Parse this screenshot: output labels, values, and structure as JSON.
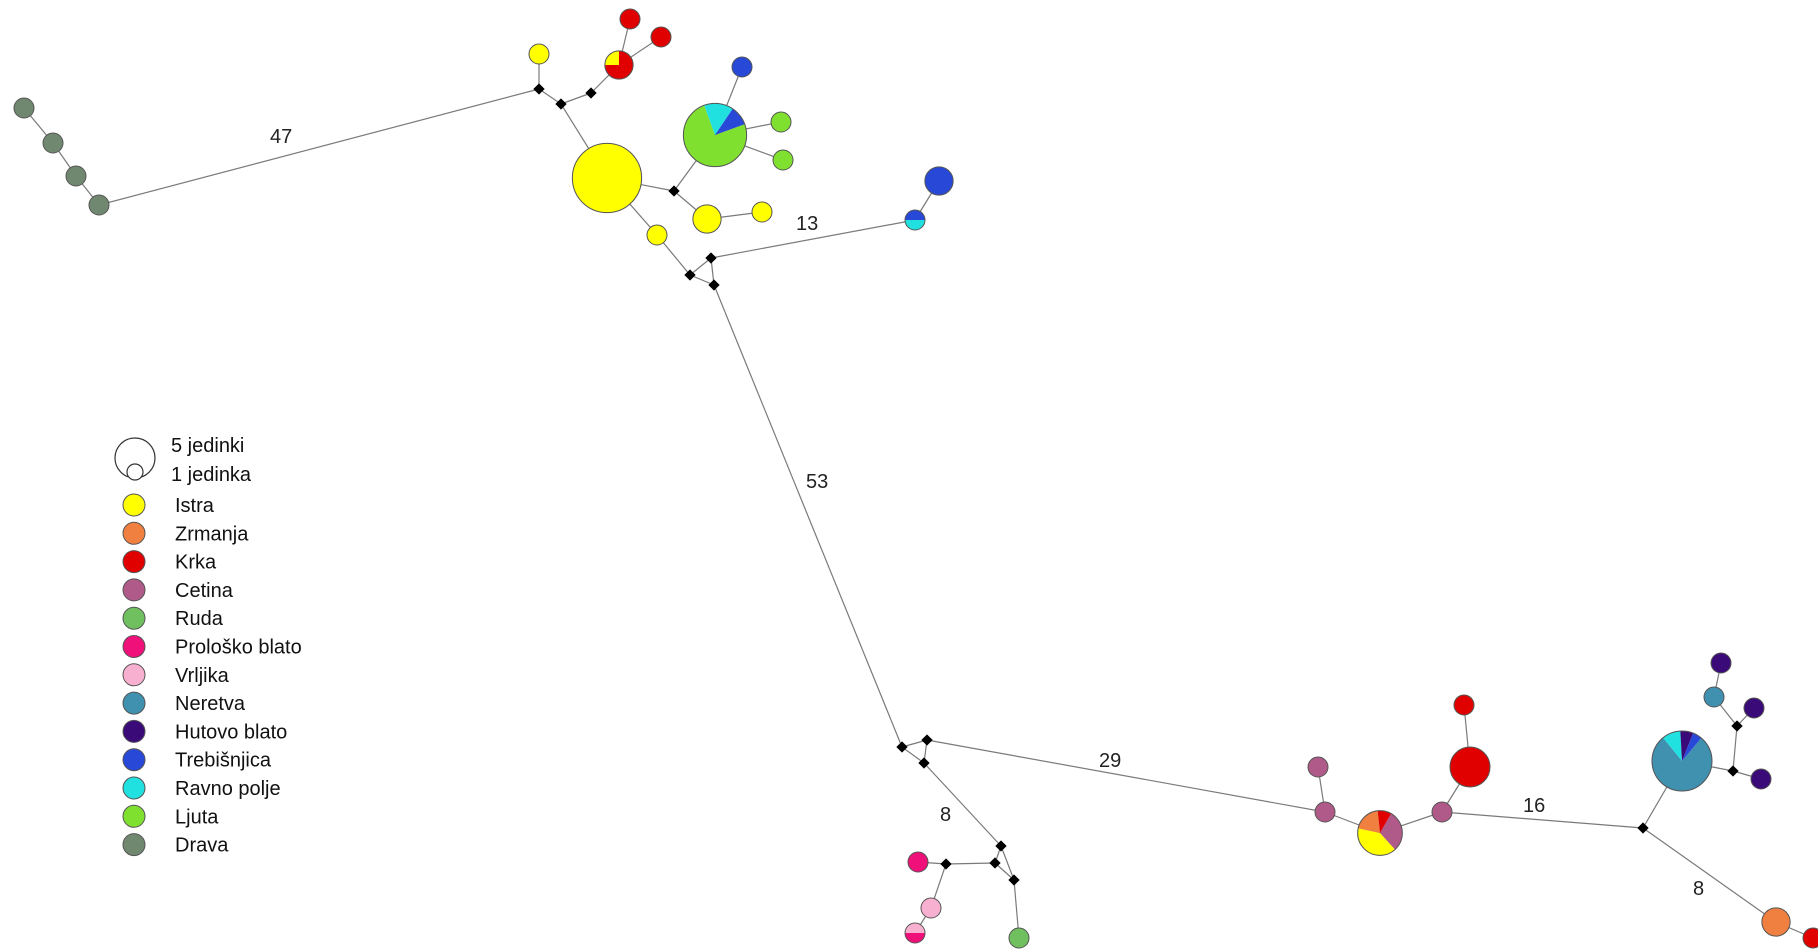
{
  "legend": {
    "size_labels": [
      "5 jedinki",
      "1 jedinka"
    ],
    "populations": [
      {
        "name": "Istra",
        "color": "#ffff00"
      },
      {
        "name": "Zrmanja",
        "color": "#f08040"
      },
      {
        "name": "Krka",
        "color": "#e00000"
      },
      {
        "name": "Cetina",
        "color": "#b05a8a"
      },
      {
        "name": "Ruda",
        "color": "#70c060"
      },
      {
        "name": "Prološko blato",
        "color": "#f0107a"
      },
      {
        "name": "Vrljika",
        "color": "#f8b0d0"
      },
      {
        "name": "Neretva",
        "color": "#4090b0"
      },
      {
        "name": "Hutovo blato",
        "color": "#3a0a78"
      },
      {
        "name": "Trebišnjica",
        "color": "#2848d8"
      },
      {
        "name": "Ravno polje",
        "color": "#20e0e0"
      },
      {
        "name": "Ljuta",
        "color": "#80e030"
      },
      {
        "name": "Drava",
        "color": "#708870"
      }
    ]
  },
  "mutation_labels": [
    "47",
    "13",
    "53",
    "29",
    "8",
    "16",
    "8"
  ],
  "haplotypes": [
    {
      "id": "drava1",
      "pops": [
        "Drava"
      ],
      "count": 1
    },
    {
      "id": "drava2",
      "pops": [
        "Drava"
      ],
      "count": 1
    },
    {
      "id": "drava3",
      "pops": [
        "Drava"
      ],
      "count": 1
    },
    {
      "id": "drava4",
      "pops": [
        "Drava"
      ],
      "count": 1
    },
    {
      "id": "istra-small-top",
      "pops": [
        "Istra"
      ],
      "count": 1
    },
    {
      "id": "krka-a",
      "pops": [
        "Krka"
      ],
      "count": 1
    },
    {
      "id": "krka-b",
      "pops": [
        "Krka"
      ],
      "count": 1
    },
    {
      "id": "krka-istra",
      "pops": [
        "Krka",
        "Istra"
      ],
      "count": 2
    },
    {
      "id": "istra-large",
      "pops": [
        "Istra"
      ],
      "count": 12
    },
    {
      "id": "ljuta-mixed",
      "pops": [
        "Ljuta",
        "Ravno polje",
        "Trebišnjica"
      ],
      "count": 10
    },
    {
      "id": "treb-small",
      "pops": [
        "Trebišnjica"
      ],
      "count": 1
    },
    {
      "id": "ljuta-a",
      "pops": [
        "Ljuta"
      ],
      "count": 1
    },
    {
      "id": "ljuta-b",
      "pops": [
        "Ljuta"
      ],
      "count": 1
    },
    {
      "id": "istra-mid",
      "pops": [
        "Istra"
      ],
      "count": 2
    },
    {
      "id": "istra-tiny",
      "pops": [
        "Istra"
      ],
      "count": 1
    },
    {
      "id": "istra-low",
      "pops": [
        "Istra"
      ],
      "count": 1
    },
    {
      "id": "treb-b",
      "pops": [
        "Trebišnjica"
      ],
      "count": 2
    },
    {
      "id": "treb-ravno",
      "pops": [
        "Trebišnjica",
        "Ravno polje"
      ],
      "count": 1
    },
    {
      "id": "prolosko",
      "pops": [
        "Prološko blato"
      ],
      "count": 1
    },
    {
      "id": "vrljika",
      "pops": [
        "Vrljika"
      ],
      "count": 1
    },
    {
      "id": "vrljika-prolosko",
      "pops": [
        "Vrljika",
        "Prološko blato"
      ],
      "count": 1
    },
    {
      "id": "ruda",
      "pops": [
        "Ruda"
      ],
      "count": 1
    },
    {
      "id": "cetina-top",
      "pops": [
        "Cetina"
      ],
      "count": 1
    },
    {
      "id": "cetina-left",
      "pops": [
        "Cetina"
      ],
      "count": 1
    },
    {
      "id": "mixed-central",
      "pops": [
        "Cetina",
        "Istra",
        "Zrmanja",
        "Krka"
      ],
      "count": 5
    },
    {
      "id": "krka-top",
      "pops": [
        "Krka"
      ],
      "count": 1
    },
    {
      "id": "krka-large",
      "pops": [
        "Krka"
      ],
      "count": 4
    },
    {
      "id": "cetina-right",
      "pops": [
        "Cetina"
      ],
      "count": 1
    },
    {
      "id": "neretva-large",
      "pops": [
        "Neretva",
        "Ravno polje",
        "Hutovo blato",
        "Trebišnjica"
      ],
      "count": 9
    },
    {
      "id": "hutovo-a",
      "pops": [
        "Hutovo blato"
      ],
      "count": 1
    },
    {
      "id": "neretva-small",
      "pops": [
        "Neretva"
      ],
      "count": 1
    },
    {
      "id": "hutovo-b",
      "pops": [
        "Hutovo blato"
      ],
      "count": 1
    },
    {
      "id": "hutovo-c",
      "pops": [
        "Hutovo blato"
      ],
      "count": 1
    },
    {
      "id": "zrmanja",
      "pops": [
        "Zrmanja"
      ],
      "count": 2
    },
    {
      "id": "krka-edge",
      "pops": [
        "Krka"
      ],
      "count": 1
    }
  ]
}
